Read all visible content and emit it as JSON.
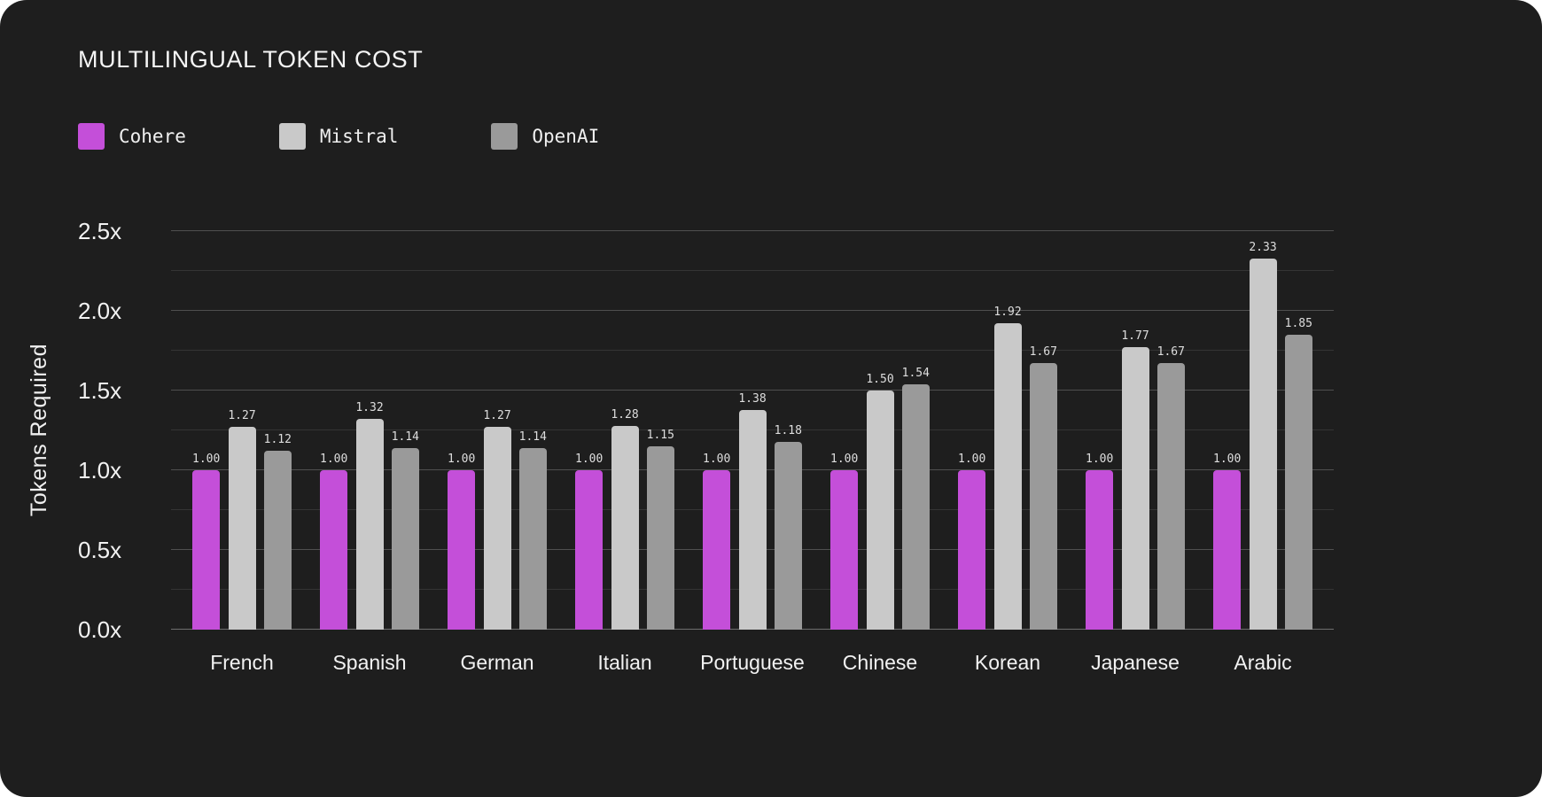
{
  "page": {
    "background": "#ffffff",
    "card_background": "#1e1e1e"
  },
  "chart_data": {
    "type": "bar",
    "title": "MULTILINGUAL TOKEN COST",
    "ylabel": "Tokens Required",
    "xlabel": "",
    "ylim": [
      0,
      2.5
    ],
    "grid": "horizontal majors every 0.5 with minors every 0.25",
    "legend_position": "top-left",
    "categories": [
      "French",
      "Spanish",
      "German",
      "Italian",
      "Portuguese",
      "Chinese",
      "Korean",
      "Japanese",
      "Arabic"
    ],
    "yticks": [
      {
        "value": 0.0,
        "label": "0.0x"
      },
      {
        "value": 0.5,
        "label": "0.5x"
      },
      {
        "value": 1.0,
        "label": "1.0x"
      },
      {
        "value": 1.5,
        "label": "1.5x"
      },
      {
        "value": 2.0,
        "label": "2.0x"
      },
      {
        "value": 2.5,
        "label": "2.5x"
      }
    ],
    "series": [
      {
        "name": "Cohere",
        "color": "#c44fd9",
        "values": [
          1.0,
          1.0,
          1.0,
          1.0,
          1.0,
          1.0,
          1.0,
          1.0,
          1.0
        ]
      },
      {
        "name": "Mistral",
        "color": "#c9c9c9",
        "values": [
          1.27,
          1.32,
          1.27,
          1.28,
          1.38,
          1.5,
          1.92,
          1.77,
          2.33
        ]
      },
      {
        "name": "OpenAI",
        "color": "#9a9a9a",
        "values": [
          1.12,
          1.14,
          1.14,
          1.15,
          1.18,
          1.54,
          1.67,
          1.67,
          1.85
        ]
      }
    ]
  }
}
